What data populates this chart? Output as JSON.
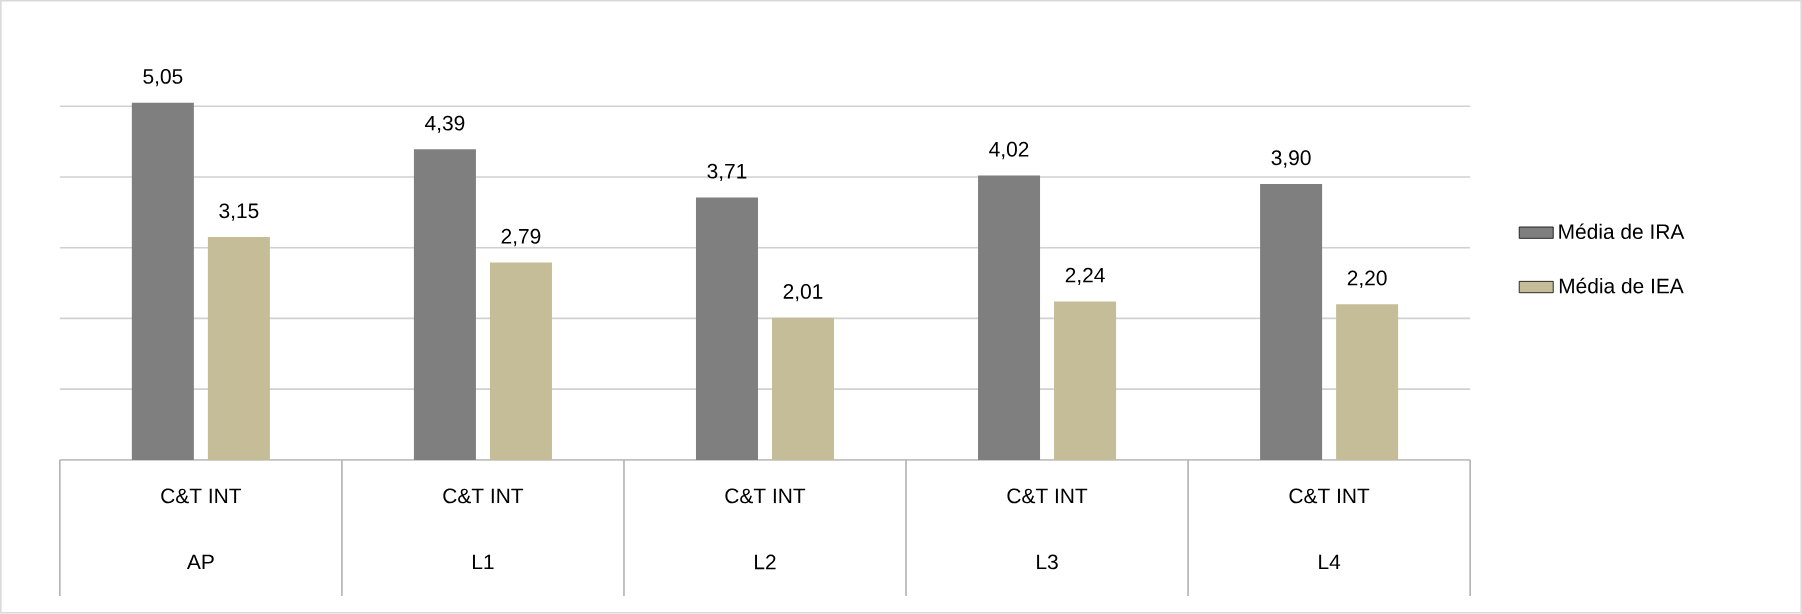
{
  "chart_data": {
    "type": "bar",
    "categories": [
      "AP",
      "L1",
      "L2",
      "L3",
      "L4"
    ],
    "annotations": [
      "C&T INT",
      "C&T INT",
      "C&T INT",
      "C&T INT",
      "C&T INT"
    ],
    "series": [
      {
        "name": "Média de IRA",
        "color": "#7f7f7f",
        "values": [
          5.05,
          4.39,
          3.71,
          4.02,
          3.9
        ],
        "value_labels": [
          "5,05",
          "4,39",
          "3,71",
          "4,02",
          "3,90"
        ]
      },
      {
        "name": "Média de IEA",
        "color": "#c4bd97",
        "values": [
          3.15,
          2.79,
          2.01,
          2.24,
          2.2
        ],
        "value_labels": [
          "3,15",
          "2,79",
          "2,01",
          "2,24",
          "2,20"
        ]
      }
    ],
    "grid": "y",
    "legend": "right",
    "tick_labels": "x"
  }
}
